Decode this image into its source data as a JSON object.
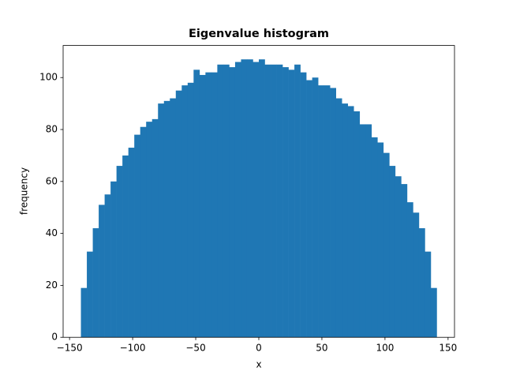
{
  "chart_data": {
    "type": "histogram",
    "title": "Eigenvalue histogram",
    "x_label": "x",
    "y_label": "frequency",
    "color": "#1f77b4",
    "bins": [
      -141,
      -136.3,
      -131.6,
      -126.9,
      -122.2,
      -117.5,
      -112.8,
      -108.1,
      -103.4,
      -98.7,
      -94,
      -89.3,
      -84.6,
      -79.9,
      -75.2,
      -70.5,
      -65.8,
      -61.1,
      -56.4,
      -51.7,
      -47,
      -42.3,
      -37.6,
      -32.9,
      -28.2,
      -23.5,
      -18.8,
      -14.1,
      -9.4,
      -4.7,
      0,
      4.7,
      9.4,
      14.1,
      18.8,
      23.5,
      28.2,
      32.9,
      37.6,
      42.3,
      47,
      51.7,
      56.4,
      61.1,
      65.8,
      70.5,
      75.2,
      79.9,
      84.6,
      89.3,
      94,
      98.7,
      103.4,
      108.1,
      112.8,
      117.5,
      122.2,
      126.9,
      131.6,
      136.3,
      141
    ],
    "values": [
      19,
      33,
      42,
      51,
      55,
      60,
      66,
      70,
      73,
      78,
      81,
      83,
      84,
      90,
      91,
      92,
      95,
      97,
      98,
      103,
      101,
      102,
      102,
      105,
      105,
      104,
      106,
      107,
      107,
      106,
      107,
      105,
      105,
      105,
      104,
      103,
      105,
      102,
      99,
      100,
      97,
      97,
      96,
      92,
      90,
      89,
      87,
      82,
      82,
      77,
      75,
      71,
      66,
      62,
      59,
      52,
      48,
      42,
      33,
      19
    ],
    "xlim": [
      -155.1,
      155.1
    ],
    "ylim": [
      0,
      112.35
    ],
    "xticks": [
      {
        "value": -150,
        "label": "−150"
      },
      {
        "value": -100,
        "label": "−100"
      },
      {
        "value": -50,
        "label": "−50"
      },
      0,
      50,
      100,
      150
    ],
    "yticks": [
      0,
      20,
      40,
      60,
      80,
      100
    ]
  }
}
